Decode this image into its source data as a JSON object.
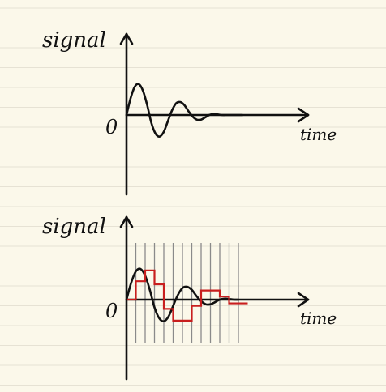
{
  "colors": {
    "paper": "#fbf8ea",
    "rule_line": "#e6e2d4",
    "ink": "#111111",
    "sample_line": "#8a8a8a",
    "sampled_signal": "#c81e1e"
  },
  "chart_data": [
    {
      "type": "line",
      "ylabel": "signal",
      "xlabel": "time",
      "y_tick_labels": [
        "0"
      ],
      "grid": false,
      "series": [
        {
          "x": [
            0,
            0.5,
            1,
            1.5,
            2,
            2.5,
            3,
            3.5,
            4,
            4.5,
            5,
            5.5,
            6,
            6.5,
            7,
            7.5,
            8,
            8.5,
            9,
            9.5,
            10,
            10.5,
            11,
            11.5,
            12,
            12.5,
            13,
            13.5,
            14
          ],
          "y": [
            0,
            0.55,
            0.92,
            1.0,
            0.78,
            0.32,
            -0.25,
            -0.6,
            -0.7,
            -0.55,
            -0.2,
            0.15,
            0.38,
            0.42,
            0.32,
            0.12,
            -0.05,
            -0.15,
            -0.15,
            -0.08,
            0,
            0.03,
            0.02,
            0.0,
            0.0,
            0.0,
            0.0,
            0.0,
            0.0
          ]
        }
      ]
    },
    {
      "type": "line",
      "ylabel": "signal",
      "xlabel": "time",
      "y_tick_labels": [
        "0"
      ],
      "grid": false,
      "sample_times": [
        0,
        1,
        2,
        3,
        4,
        5,
        6,
        7,
        8,
        9,
        10,
        11,
        12
      ],
      "series": [
        {
          "x": [
            0,
            0.5,
            1,
            1.5,
            2,
            2.5,
            3,
            3.5,
            4,
            4.5,
            5,
            5.5,
            6,
            6.5,
            7,
            7.5,
            8,
            8.5,
            9,
            9.5,
            10,
            10.5,
            11,
            11.5,
            12
          ],
          "y": [
            0,
            0.55,
            0.92,
            1.0,
            0.78,
            0.32,
            -0.25,
            -0.6,
            -0.7,
            -0.55,
            -0.2,
            0.15,
            0.38,
            0.42,
            0.32,
            0.12,
            -0.05,
            -0.15,
            -0.15,
            -0.08,
            0,
            0.03,
            0.02,
            0.0,
            0.0
          ]
        },
        {
          "step": true,
          "x": [
            0,
            1,
            2,
            3,
            4,
            5,
            6,
            7,
            8,
            9,
            10,
            11,
            12
          ],
          "y": [
            0,
            0.6,
            0.95,
            0.5,
            -0.3,
            -0.68,
            -0.68,
            -0.2,
            0.3,
            0.3,
            0.1,
            -0.12,
            -0.12
          ]
        }
      ]
    }
  ]
}
